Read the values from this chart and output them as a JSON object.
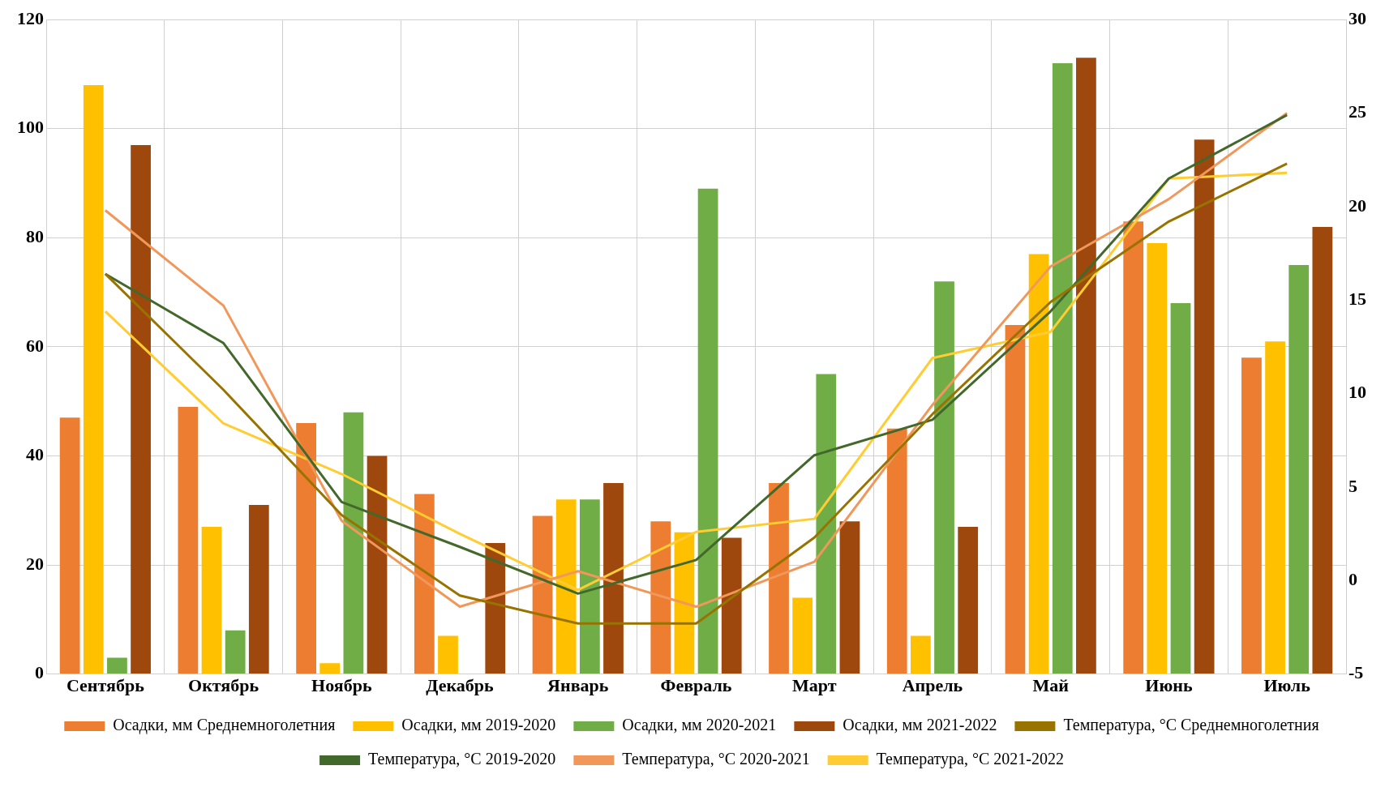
{
  "chart_data": {
    "type": "bar",
    "categories": [
      "Сентябрь",
      "Октябрь",
      "Ноябрь",
      "Декабрь",
      "Январь",
      "Февраль",
      "Март",
      "Апрель",
      "Май",
      "Июнь",
      "Июль"
    ],
    "series": [
      {
        "name": "Осадки, мм Среднемноголетния",
        "color": "#ed7d31",
        "values": [
          47,
          49,
          46,
          33,
          29,
          28,
          35,
          45,
          64,
          83,
          58
        ]
      },
      {
        "name": "Осадки, мм 2019-2020",
        "color": "#ffc000",
        "values": [
          108,
          27,
          2,
          7,
          32,
          26,
          14,
          7,
          77,
          79,
          61
        ]
      },
      {
        "name": "Осадки, мм 2020-2021",
        "color": "#70ad47",
        "values": [
          3,
          8,
          48,
          0,
          32,
          89,
          55,
          72,
          112,
          68,
          75
        ]
      },
      {
        "name": "Осадки, мм 2021-2022",
        "color": "#9e480e",
        "values": [
          97,
          31,
          40,
          24,
          35,
          25,
          28,
          27,
          113,
          98,
          82
        ]
      },
      {
        "name": "Температура, °С Среднемноголетния",
        "type": "line",
        "axis": "y2",
        "color": "#997300",
        "values": [
          16.4,
          10.2,
          3.5,
          -0.8,
          -2.3,
          -2.3,
          2.3,
          8.9,
          14.9,
          19.2,
          22.3
        ]
      },
      {
        "name": "Температура, °С 2019-2020",
        "type": "line",
        "axis": "y2",
        "color": "#43682b",
        "values": [
          16.4,
          12.7,
          4.2,
          1.8,
          -0.7,
          1.1,
          6.7,
          8.6,
          14.4,
          21.5,
          24.9
        ]
      },
      {
        "name": "Температура, °С 2020-2021",
        "type": "line",
        "axis": "y2",
        "color": "#f1975a",
        "values": [
          19.8,
          14.7,
          3.2,
          -1.4,
          0.5,
          -1.4,
          1.0,
          9.4,
          16.8,
          20.4,
          25.0
        ]
      },
      {
        "name": "Температура, °С 2021-2022",
        "type": "line",
        "axis": "y2",
        "color": "#ffcd33",
        "values": [
          14.4,
          8.4,
          5.7,
          2.5,
          -0.5,
          2.6,
          3.3,
          11.9,
          13.3,
          21.5,
          21.8
        ]
      }
    ],
    "ylim": [
      0,
      120
    ],
    "yticks": [
      0,
      20,
      40,
      60,
      80,
      100,
      120
    ],
    "y2lim": [
      -5,
      30
    ],
    "y2ticks": [
      -5,
      0,
      5,
      10,
      15,
      20,
      25,
      30
    ],
    "grid": true,
    "legend": "bottom",
    "marker": "none",
    "line_style": "solid"
  }
}
